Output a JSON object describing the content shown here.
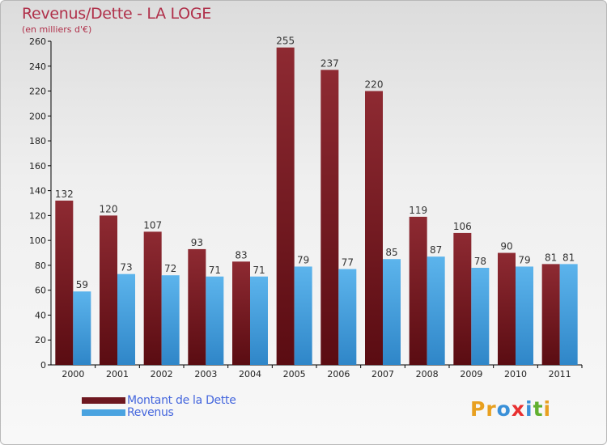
{
  "header": {
    "title": "Revenus/Dette - LA LOGE",
    "subtitle": "(en milliers d'€)"
  },
  "legend": {
    "items": [
      {
        "label": "Montant de la Dette",
        "color": "#6e1820"
      },
      {
        "label": "Revenus",
        "color": "#4aa3e0"
      }
    ]
  },
  "logo": {
    "letters": [
      "P",
      "r",
      "o",
      "x",
      "i",
      "t",
      "i"
    ],
    "colors": [
      "#e8a020",
      "#e8a020",
      "#3a90d8",
      "#e83030",
      "#3a90d8",
      "#60b030",
      "#e8a020"
    ]
  },
  "chart_data": {
    "type": "bar",
    "title": "Revenus/Dette - LA LOGE",
    "subtitle": "(en milliers d'€)",
    "categories": [
      "2000",
      "2001",
      "2002",
      "2003",
      "2004",
      "2005",
      "2006",
      "2007",
      "2008",
      "2009",
      "2010",
      "2011"
    ],
    "series": [
      {
        "name": "Montant de la Dette",
        "color": "#6e1820",
        "values": [
          132,
          120,
          107,
          93,
          83,
          255,
          237,
          220,
          119,
          106,
          90,
          81
        ]
      },
      {
        "name": "Revenus",
        "color": "#4aa3e0",
        "values": [
          59,
          73,
          72,
          71,
          71,
          79,
          77,
          85,
          87,
          78,
          79,
          81
        ]
      }
    ],
    "ylim": [
      0,
      260
    ],
    "yticks": [
      0,
      20,
      40,
      60,
      80,
      100,
      120,
      140,
      160,
      180,
      200,
      220,
      240,
      260
    ],
    "grid": false,
    "legend_position": "bottom-left"
  }
}
